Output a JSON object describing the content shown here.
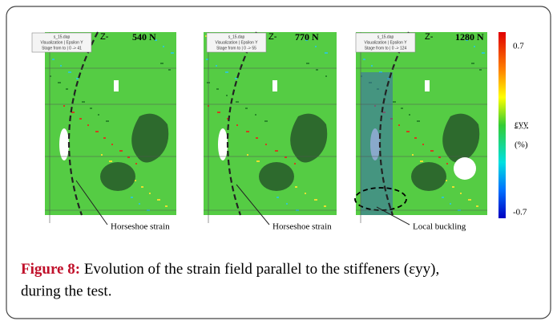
{
  "figure": {
    "panels": [
      {
        "force": "540 N",
        "axis": "Z-",
        "info": [
          "s_15.dap",
          "Visualization | Epsilon Y",
          "Stage from to | 0 -> 41"
        ],
        "annotation": "Horseshoe strain"
      },
      {
        "force": "770 N",
        "axis": "Z-",
        "info": [
          "s_15.dap",
          "Visualization | Epsilon Y",
          "Stage from to | 0 -> 55"
        ],
        "annotation": "Horseshoe strain"
      },
      {
        "force": "1280 N",
        "axis": "Z-",
        "info": [
          "s_15.dap",
          "Visualization | Epsilon Y",
          "Stage from to | 0 -> 124"
        ],
        "annotation": "Local buckling"
      }
    ],
    "colorbar": {
      "max": "0.7",
      "label": "εyy",
      "unit": "(%)",
      "min": "-0.7"
    },
    "caption": {
      "label": "Figure 8:",
      "lines": [
        "Evolution of the strain field parallel to the stiffeners (εyy),",
        "during the test."
      ]
    }
  }
}
